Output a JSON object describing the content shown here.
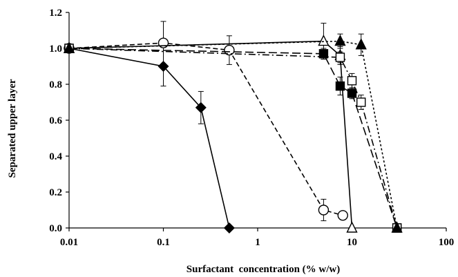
{
  "chart_data": {
    "type": "scatter",
    "xlabel": "Surfactant  concentration (% w/w)",
    "ylabel": "Separated upper layer",
    "xscale": "log",
    "xlim": [
      0.01,
      100
    ],
    "ylim": [
      0,
      1.2
    ],
    "x_ticks": [
      "0.01",
      "0.1",
      "1",
      "10",
      "100"
    ],
    "y_ticks": [
      "0.0",
      "0.2",
      "0.4",
      "0.6",
      "0.8",
      "1.0",
      "1.2"
    ],
    "grid": false,
    "legend": "none",
    "series": [
      {
        "marker": "filled-diamond",
        "line": "solid",
        "x": [
          0.01,
          0.1,
          0.25,
          0.5
        ],
        "y": [
          1.0,
          0.9,
          0.67,
          0.0
        ],
        "err": [
          0,
          0.11,
          0.09,
          0
        ]
      },
      {
        "marker": "open-circle",
        "line": "dashed",
        "x": [
          0.01,
          0.1,
          0.5,
          5,
          8
        ],
        "y": [
          1.0,
          1.03,
          0.99,
          0.1,
          0.07
        ],
        "err": [
          0,
          0.12,
          0.08,
          0.06,
          0
        ]
      },
      {
        "marker": "open-triangle",
        "line": "solid",
        "x": [
          0.01,
          5,
          7.5,
          10
        ],
        "y": [
          1.0,
          1.04,
          0.96,
          0.0
        ],
        "err": [
          0,
          0.1,
          0.05,
          0
        ]
      },
      {
        "marker": "filled-square",
        "line": "long-dash",
        "x": [
          0.01,
          5,
          7.5,
          10,
          30
        ],
        "y": [
          1.0,
          0.97,
          0.79,
          0.75,
          0.0
        ],
        "err": [
          0,
          0.03,
          0.05,
          0.03,
          0
        ]
      },
      {
        "marker": "open-square",
        "line": "dash-dot",
        "x": [
          0.01,
          7.5,
          10,
          12.5,
          30
        ],
        "y": [
          1.0,
          0.95,
          0.82,
          0.7,
          0.0
        ],
        "err": [
          0,
          0.03,
          0.04,
          0.04,
          0
        ]
      },
      {
        "marker": "filled-triangle",
        "line": "dotted",
        "x": [
          0.01,
          7.5,
          12.5,
          30
        ],
        "y": [
          1.0,
          1.04,
          1.02,
          0.0
        ],
        "err": [
          0,
          0.04,
          0.06,
          0
        ]
      }
    ]
  }
}
